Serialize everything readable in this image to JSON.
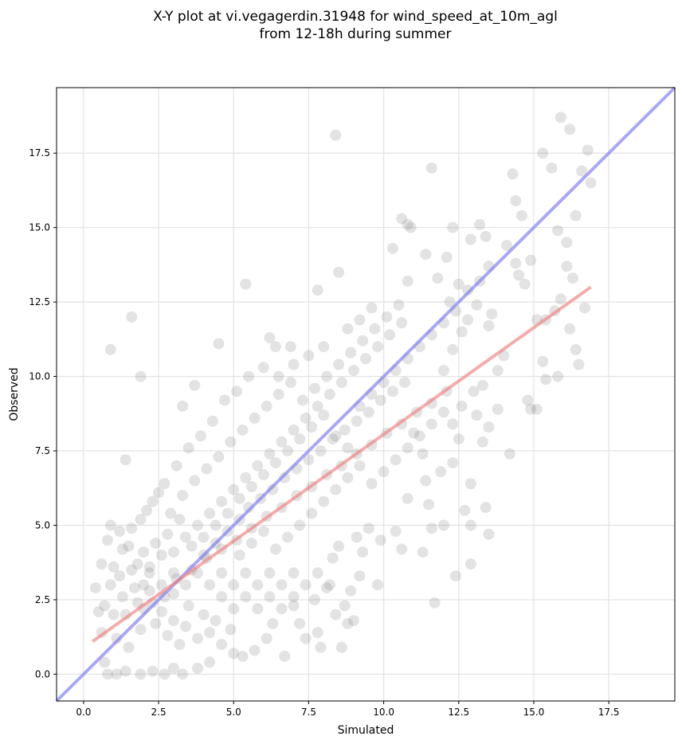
{
  "chart_data": {
    "type": "scatter",
    "title_lines": [
      "X-Y plot at vi.vegagerdin.31948 for wind_speed_at_10m_agl",
      "from 12-18h during summer"
    ],
    "xlabel": "Simulated",
    "ylabel": "Observed",
    "xlim": [
      -0.9,
      19.7
    ],
    "ylim": [
      -0.9,
      19.7
    ],
    "xticks": [
      0.0,
      2.5,
      5.0,
      7.5,
      10.0,
      12.5,
      15.0,
      17.5
    ],
    "yticks": [
      0.0,
      2.5,
      5.0,
      7.5,
      10.0,
      12.5,
      15.0,
      17.5
    ],
    "xtick_labels": [
      "0.0",
      "2.5",
      "5.0",
      "7.5",
      "10.0",
      "12.5",
      "15.0",
      "17.5"
    ],
    "ytick_labels": [
      "0.0",
      "2.5",
      "5.0",
      "7.5",
      "10.0",
      "12.5",
      "15.0",
      "17.5"
    ],
    "grid": true,
    "points": [
      [
        0.9,
        10.9
      ],
      [
        1.6,
        12.0
      ],
      [
        1.9,
        10.0
      ],
      [
        1.4,
        7.2
      ],
      [
        3.3,
        9.0
      ],
      [
        3.7,
        9.7
      ],
      [
        4.5,
        11.1
      ],
      [
        5.4,
        13.1
      ],
      [
        6.2,
        11.3
      ],
      [
        6.4,
        11.0
      ],
      [
        6.9,
        11.0
      ],
      [
        7.8,
        12.9
      ],
      [
        8.5,
        13.5
      ],
      [
        8.4,
        18.1
      ],
      [
        11.6,
        17.0
      ],
      [
        10.8,
        15.1
      ],
      [
        10.6,
        15.3
      ],
      [
        10.9,
        15.0
      ],
      [
        10.3,
        14.3
      ],
      [
        11.4,
        14.1
      ],
      [
        10.8,
        13.2
      ],
      [
        11.8,
        13.3
      ],
      [
        12.1,
        14.0
      ],
      [
        12.3,
        15.0
      ],
      [
        12.9,
        14.6
      ],
      [
        13.2,
        15.1
      ],
      [
        13.4,
        14.7
      ],
      [
        13.5,
        13.7
      ],
      [
        13.2,
        13.2
      ],
      [
        12.8,
        12.9
      ],
      [
        12.5,
        13.1
      ],
      [
        12.2,
        12.5
      ],
      [
        14.1,
        14.4
      ],
      [
        14.4,
        13.8
      ],
      [
        14.5,
        13.4
      ],
      [
        14.7,
        13.1
      ],
      [
        14.9,
        13.9
      ],
      [
        14.3,
        16.8
      ],
      [
        14.4,
        15.9
      ],
      [
        14.6,
        15.4
      ],
      [
        15.3,
        17.5
      ],
      [
        15.6,
        17.0
      ],
      [
        15.9,
        18.7
      ],
      [
        16.2,
        18.3
      ],
      [
        16.4,
        15.4
      ],
      [
        16.6,
        16.9
      ],
      [
        16.8,
        17.6
      ],
      [
        16.9,
        16.5
      ],
      [
        15.8,
        14.9
      ],
      [
        16.1,
        14.5
      ],
      [
        16.3,
        13.3
      ],
      [
        16.1,
        13.7
      ],
      [
        15.9,
        12.6
      ],
      [
        15.7,
        12.2
      ],
      [
        15.4,
        11.9
      ],
      [
        15.1,
        11.9
      ],
      [
        15.3,
        10.5
      ],
      [
        15.4,
        9.9
      ],
      [
        15.8,
        10.0
      ],
      [
        16.2,
        11.6
      ],
      [
        16.4,
        10.9
      ],
      [
        16.5,
        10.4
      ],
      [
        16.7,
        12.3
      ],
      [
        14.8,
        9.2
      ],
      [
        14.9,
        8.9
      ],
      [
        15.1,
        8.9
      ],
      [
        14.2,
        7.4
      ],
      [
        13.8,
        10.2
      ],
      [
        14.0,
        10.7
      ],
      [
        13.5,
        11.7
      ],
      [
        13.6,
        12.1
      ],
      [
        13.1,
        12.4
      ],
      [
        12.8,
        11.9
      ],
      [
        12.6,
        11.5
      ],
      [
        12.3,
        10.9
      ],
      [
        12.0,
        10.2
      ],
      [
        13.3,
        9.7
      ],
      [
        13.0,
        9.5
      ],
      [
        12.6,
        9.0
      ],
      [
        12.3,
        8.4
      ],
      [
        12.5,
        7.9
      ],
      [
        13.3,
        7.8
      ],
      [
        13.1,
        8.7
      ],
      [
        13.5,
        8.3
      ],
      [
        13.8,
        8.9
      ],
      [
        12.9,
        6.4
      ],
      [
        13.4,
        5.6
      ],
      [
        13.5,
        4.7
      ],
      [
        12.9,
        5.0
      ],
      [
        12.7,
        5.5
      ],
      [
        12.4,
        3.3
      ],
      [
        12.9,
        3.7
      ],
      [
        11.7,
        2.4
      ],
      [
        12.3,
        7.1
      ],
      [
        11.9,
        6.8
      ],
      [
        11.3,
        7.4
      ],
      [
        11.0,
        8.1
      ],
      [
        11.4,
        6.5
      ],
      [
        10.8,
        5.9
      ],
      [
        11.5,
        5.7
      ],
      [
        11.6,
        4.9
      ],
      [
        11.3,
        4.1
      ],
      [
        12.0,
        5.0
      ],
      [
        10.4,
        4.8
      ],
      [
        10.6,
        4.2
      ],
      [
        9.8,
        3.0
      ],
      [
        9.9,
        4.5
      ],
      [
        9.5,
        4.9
      ],
      [
        9.3,
        4.1
      ],
      [
        9.1,
        4.6
      ],
      [
        9.2,
        3.3
      ],
      [
        8.5,
        4.3
      ],
      [
        8.3,
        3.9
      ],
      [
        8.1,
        2.9
      ],
      [
        8.4,
        2.0
      ],
      [
        8.8,
        1.7
      ],
      [
        8.7,
        2.3
      ],
      [
        8.9,
        2.8
      ],
      [
        9.0,
        1.8
      ],
      [
        8.6,
        0.9
      ],
      [
        7.7,
        2.5
      ],
      [
        7.8,
        1.4
      ],
      [
        7.9,
        0.9
      ],
      [
        7.4,
        1.2
      ],
      [
        7.2,
        1.7
      ],
      [
        7.0,
        2.3
      ],
      [
        6.7,
        0.6
      ],
      [
        6.3,
        1.7
      ],
      [
        6.1,
        1.2
      ],
      [
        5.7,
        0.8
      ],
      [
        5.3,
        0.6
      ],
      [
        5.0,
        0.7
      ],
      [
        4.6,
        1.0
      ],
      [
        4.2,
        0.4
      ],
      [
        3.8,
        0.2
      ],
      [
        3.3,
        0.0
      ],
      [
        3.0,
        0.2
      ],
      [
        2.7,
        0.0
      ],
      [
        2.3,
        0.1
      ],
      [
        1.9,
        0.0
      ],
      [
        1.4,
        0.1
      ],
      [
        1.1,
        0.0
      ],
      [
        0.8,
        0.0
      ],
      [
        0.7,
        0.4
      ],
      [
        0.6,
        1.4
      ],
      [
        0.5,
        2.1
      ],
      [
        0.4,
        2.9
      ],
      [
        0.6,
        3.7
      ],
      [
        0.8,
        4.5
      ],
      [
        0.9,
        5.0
      ],
      [
        1.2,
        4.8
      ],
      [
        1.5,
        4.3
      ],
      [
        1.8,
        3.7
      ],
      [
        2.2,
        3.4
      ],
      [
        2.6,
        3.0
      ],
      [
        3.0,
        2.7
      ],
      [
        3.5,
        2.3
      ],
      [
        4.0,
        2.0
      ],
      [
        4.4,
        1.8
      ],
      [
        4.9,
        1.5
      ],
      [
        1.0,
        2.0
      ],
      [
        1.3,
        2.6
      ],
      [
        1.7,
        2.9
      ],
      [
        2.0,
        2.2
      ],
      [
        2.4,
        1.7
      ],
      [
        2.8,
        1.3
      ],
      [
        3.2,
        1.0
      ],
      [
        1.1,
        1.2
      ],
      [
        1.5,
        0.9
      ],
      [
        1.9,
        1.5
      ],
      [
        2.3,
        2.4
      ],
      [
        2.7,
        2.6
      ],
      [
        3.1,
        3.2
      ],
      [
        3.6,
        3.5
      ],
      [
        4.1,
        3.9
      ],
      [
        4.6,
        4.2
      ],
      [
        5.1,
        4.5
      ],
      [
        5.6,
        4.9
      ],
      [
        6.1,
        5.3
      ],
      [
        6.6,
        5.6
      ],
      [
        7.1,
        6.0
      ],
      [
        7.6,
        6.3
      ],
      [
        8.1,
        6.7
      ],
      [
        8.6,
        7.0
      ],
      [
        9.1,
        7.4
      ],
      [
        9.6,
        7.7
      ],
      [
        10.1,
        8.1
      ],
      [
        10.6,
        8.4
      ],
      [
        11.1,
        8.8
      ],
      [
        11.6,
        9.1
      ],
      [
        12.1,
        9.5
      ],
      [
        2.1,
        5.5
      ],
      [
        2.5,
        6.1
      ],
      [
        2.9,
        5.4
      ],
      [
        3.3,
        6.0
      ],
      [
        3.7,
        6.5
      ],
      [
        4.1,
        6.9
      ],
      [
        4.5,
        7.3
      ],
      [
        4.9,
        7.8
      ],
      [
        5.3,
        8.2
      ],
      [
        5.7,
        8.6
      ],
      [
        6.1,
        9.0
      ],
      [
        6.5,
        9.4
      ],
      [
        6.9,
        9.8
      ],
      [
        7.3,
        9.2
      ],
      [
        7.7,
        9.6
      ],
      [
        8.1,
        10.0
      ],
      [
        8.5,
        10.4
      ],
      [
        8.9,
        10.8
      ],
      [
        9.3,
        11.2
      ],
      [
        9.7,
        11.6
      ],
      [
        10.1,
        12.0
      ],
      [
        10.5,
        12.4
      ],
      [
        3.0,
        4.1
      ],
      [
        3.4,
        4.6
      ],
      [
        3.8,
        5.0
      ],
      [
        4.2,
        5.4
      ],
      [
        4.6,
        5.8
      ],
      [
        5.0,
        6.2
      ],
      [
        5.4,
        6.6
      ],
      [
        5.8,
        7.0
      ],
      [
        6.2,
        7.4
      ],
      [
        6.6,
        7.8
      ],
      [
        7.0,
        8.2
      ],
      [
        7.4,
        8.6
      ],
      [
        7.8,
        9.0
      ],
      [
        8.2,
        9.4
      ],
      [
        8.6,
        9.8
      ],
      [
        9.0,
        10.2
      ],
      [
        9.4,
        10.6
      ],
      [
        9.8,
        11.0
      ],
      [
        10.2,
        11.4
      ],
      [
        10.6,
        11.8
      ],
      [
        2.0,
        3.0
      ],
      [
        2.2,
        3.6
      ],
      [
        2.6,
        4.0
      ],
      [
        3.0,
        3.4
      ],
      [
        3.4,
        3.0
      ],
      [
        3.8,
        3.4
      ],
      [
        4.2,
        3.0
      ],
      [
        4.6,
        3.4
      ],
      [
        5.0,
        3.0
      ],
      [
        5.4,
        3.4
      ],
      [
        5.8,
        3.0
      ],
      [
        6.2,
        3.4
      ],
      [
        6.6,
        3.0
      ],
      [
        7.0,
        3.4
      ],
      [
        7.4,
        3.0
      ],
      [
        7.8,
        3.4
      ],
      [
        8.2,
        3.0
      ],
      [
        5.2,
        5.2
      ],
      [
        5.5,
        5.6
      ],
      [
        5.9,
        5.9
      ],
      [
        6.3,
        6.2
      ],
      [
        6.7,
        6.6
      ],
      [
        7.1,
        6.9
      ],
      [
        7.5,
        7.2
      ],
      [
        7.9,
        7.5
      ],
      [
        8.3,
        7.9
      ],
      [
        8.7,
        8.2
      ],
      [
        9.1,
        8.5
      ],
      [
        9.5,
        8.8
      ],
      [
        9.9,
        9.2
      ],
      [
        10.3,
        9.5
      ],
      [
        10.7,
        9.8
      ],
      [
        4.0,
        4.6
      ],
      [
        4.4,
        5.0
      ],
      [
        4.8,
        5.4
      ],
      [
        5.2,
        4.0
      ],
      [
        5.6,
        4.4
      ],
      [
        6.0,
        4.8
      ],
      [
        6.4,
        4.2
      ],
      [
        6.8,
        4.6
      ],
      [
        7.2,
        5.0
      ],
      [
        7.6,
        5.4
      ],
      [
        8.0,
        5.8
      ],
      [
        8.4,
        6.2
      ],
      [
        8.8,
        6.6
      ],
      [
        9.2,
        7.0
      ],
      [
        9.6,
        6.4
      ],
      [
        10.0,
        6.8
      ],
      [
        10.4,
        7.2
      ],
      [
        10.8,
        7.6
      ],
      [
        11.2,
        8.0
      ],
      [
        11.6,
        8.4
      ],
      [
        12.0,
        8.8
      ],
      [
        1.2,
        3.3
      ],
      [
        1.6,
        3.5
      ],
      [
        2.0,
        4.1
      ],
      [
        2.4,
        4.4
      ],
      [
        2.8,
        4.7
      ],
      [
        3.2,
        5.2
      ],
      [
        3.6,
        4.3
      ],
      [
        4.0,
        4.0
      ],
      [
        4.4,
        4.4
      ],
      [
        4.8,
        4.8
      ],
      [
        5.2,
        5.9
      ],
      [
        5.6,
        6.3
      ],
      [
        6.0,
        6.7
      ],
      [
        6.4,
        7.1
      ],
      [
        6.8,
        7.5
      ],
      [
        7.2,
        7.9
      ],
      [
        7.6,
        8.3
      ],
      [
        8.0,
        8.7
      ],
      [
        8.4,
        8.0
      ],
      [
        8.8,
        7.6
      ],
      [
        9.2,
        9.0
      ],
      [
        9.6,
        9.4
      ],
      [
        10.0,
        9.8
      ],
      [
        10.4,
        10.2
      ],
      [
        10.8,
        10.6
      ],
      [
        11.2,
        11.0
      ],
      [
        11.6,
        11.4
      ],
      [
        12.0,
        11.8
      ],
      [
        12.4,
        12.2
      ],
      [
        1.4,
        2.0
      ],
      [
        1.8,
        2.4
      ],
      [
        2.2,
        2.8
      ],
      [
        2.6,
        2.1
      ],
      [
        3.0,
        1.8
      ],
      [
        3.4,
        1.6
      ],
      [
        3.8,
        1.2
      ],
      [
        4.2,
        1.4
      ],
      [
        4.6,
        2.6
      ],
      [
        5.0,
        2.2
      ],
      [
        5.4,
        2.6
      ],
      [
        5.8,
        2.2
      ],
      [
        6.2,
        2.6
      ],
      [
        6.6,
        2.2
      ],
      [
        7.0,
        2.6
      ],
      [
        0.7,
        2.3
      ],
      [
        0.9,
        3.0
      ],
      [
        1.0,
        3.6
      ],
      [
        1.3,
        4.2
      ],
      [
        1.6,
        4.9
      ],
      [
        1.9,
        5.2
      ],
      [
        2.3,
        5.8
      ],
      [
        2.7,
        6.4
      ],
      [
        3.1,
        7.0
      ],
      [
        3.5,
        7.6
      ],
      [
        3.9,
        8.0
      ],
      [
        4.3,
        8.5
      ],
      [
        4.7,
        9.2
      ],
      [
        5.1,
        9.5
      ],
      [
        5.5,
        10.0
      ],
      [
        6.0,
        10.3
      ],
      [
        6.5,
        10.0
      ],
      [
        7.0,
        10.4
      ],
      [
        7.5,
        10.7
      ],
      [
        8.0,
        11.0
      ],
      [
        8.8,
        11.6
      ],
      [
        9.2,
        11.9
      ],
      [
        9.6,
        12.3
      ]
    ],
    "regression_line": {
      "x": [
        0.3,
        16.9
      ],
      "y": [
        1.1,
        13.0
      ],
      "color": "#f08080"
    },
    "identity_line": {
      "x": [
        -0.9,
        19.7
      ],
      "y": [
        -0.9,
        19.7
      ],
      "color": "#7a7aee"
    },
    "point_color": "#808080"
  }
}
